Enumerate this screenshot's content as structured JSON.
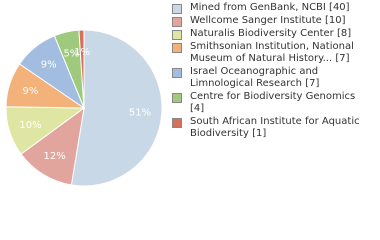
{
  "chart_data": {
    "type": "pie",
    "categories": [
      "Mined from GenBank, NCBI [40]",
      "Wellcome Sanger Institute [10]",
      "Naturalis Biodiversity Center [8]",
      "Smithsonian Institution, National Museum of Natural History... [7]",
      "Israel Oceanographic and Limnological Research [7]",
      "Centre for Biodiversity Genomics [4]",
      "South African Institute for Aquatic Biodiversity [1]"
    ],
    "values": [
      51,
      12,
      10,
      9,
      9,
      5,
      1
    ],
    "value_labels": [
      "51%",
      "12%",
      "10%",
      "9%",
      "9%",
      "5%",
      "1%"
    ],
    "colors": [
      "#c9d8e6",
      "#e2a59d",
      "#dfe6a3",
      "#f2b27a",
      "#a2bde0",
      "#9fca7e",
      "#d5705b"
    ]
  }
}
